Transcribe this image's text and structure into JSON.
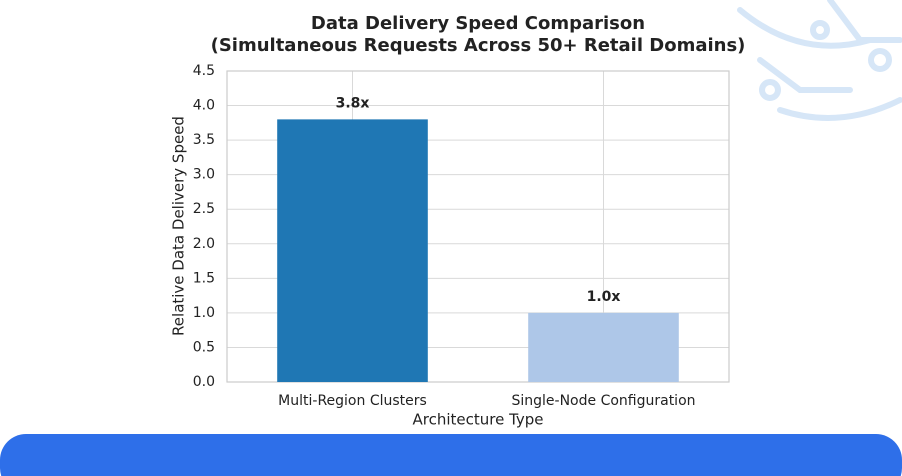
{
  "chart_data": {
    "type": "bar",
    "title": "Data Delivery Speed Comparison",
    "subtitle": "(Simultaneous Requests Across 50+ Retail Domains)",
    "x_label": "Architecture Type",
    "y_label": "Relative Data Delivery Speed",
    "categories": [
      "Multi-Region Clusters",
      "Single-Node Configuration"
    ],
    "values": [
      3.8,
      1.0
    ],
    "value_labels": [
      "3.8x",
      "1.0x"
    ],
    "colors": [
      "#1f77b4",
      "#aec7e8"
    ],
    "ylim": [
      0,
      4.5
    ],
    "yticks": [
      {
        "value": 0,
        "label": "0.0"
      },
      0.5,
      {
        "value": 1,
        "label": "1.0"
      },
      1.5,
      {
        "value": 2,
        "label": "2.0"
      },
      2.5,
      {
        "value": 3,
        "label": "3.0"
      },
      3.5,
      {
        "value": 4,
        "label": "4.0"
      },
      4.5
    ],
    "grid": true
  }
}
